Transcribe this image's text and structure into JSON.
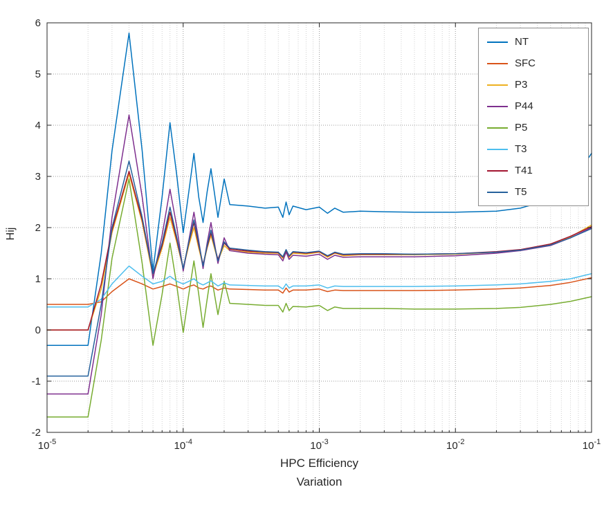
{
  "chart_data": {
    "type": "line",
    "x_scale": "log",
    "title": "",
    "xlabel_line1": "HPC Efficiency",
    "xlabel_line2": "Variation",
    "ylabel": "Hij",
    "xlim_exp": [
      -5,
      -1
    ],
    "ylim": [
      -2,
      6
    ],
    "y_ticks": [
      -2,
      -1,
      0,
      1,
      2,
      3,
      4,
      5,
      6
    ],
    "x_major_exp": [
      -5,
      -4,
      -3,
      -2,
      -1
    ],
    "grid": true,
    "minor_grid": true,
    "legend_position": "northeast",
    "axis_color": "#262626",
    "grid_color": "#9a9a9a",
    "minor_grid_color": "#cfcfcf",
    "legend_border_color": "#8c8c8c",
    "legend_background": "#ffffff",
    "x": [
      1e-05,
      2e-05,
      2.5e-05,
      3e-05,
      4e-05,
      5e-05,
      6e-05,
      7e-05,
      8e-05,
      9e-05,
      0.0001,
      0.00011,
      0.00012,
      0.00013,
      0.00014,
      0.00015,
      0.00016,
      0.00018,
      0.0002,
      0.00022,
      0.0003,
      0.0004,
      0.0005,
      0.00054,
      0.00057,
      0.0006,
      0.00064,
      0.0008,
      0.001,
      0.00115,
      0.0013,
      0.0015,
      0.002,
      0.003,
      0.005,
      0.01,
      0.02,
      0.03,
      0.05,
      0.07,
      0.1
    ],
    "series": [
      {
        "name": "NT",
        "color": "#0072BD",
        "values": [
          -0.3,
          -0.3,
          1.5,
          3.5,
          5.8,
          3.5,
          1.15,
          2.6,
          4.05,
          3.0,
          1.9,
          2.7,
          3.45,
          2.6,
          2.1,
          2.7,
          3.15,
          2.2,
          2.95,
          2.45,
          2.42,
          2.38,
          2.4,
          2.2,
          2.5,
          2.25,
          2.42,
          2.35,
          2.4,
          2.28,
          2.38,
          2.3,
          2.32,
          2.31,
          2.3,
          2.3,
          2.32,
          2.38,
          2.55,
          2.85,
          3.45
        ]
      },
      {
        "name": "SFC",
        "color": "#D95319",
        "values": [
          0.5,
          0.5,
          0.55,
          0.75,
          1.0,
          0.9,
          0.8,
          0.85,
          0.9,
          0.85,
          0.8,
          0.85,
          0.88,
          0.82,
          0.8,
          0.84,
          0.86,
          0.78,
          0.82,
          0.8,
          0.79,
          0.78,
          0.78,
          0.72,
          0.82,
          0.74,
          0.78,
          0.78,
          0.8,
          0.75,
          0.78,
          0.77,
          0.77,
          0.77,
          0.77,
          0.78,
          0.8,
          0.82,
          0.87,
          0.93,
          1.02
        ]
      },
      {
        "name": "P3",
        "color": "#EDB120",
        "values": [
          0.0,
          0.0,
          0.8,
          1.9,
          3.05,
          2.1,
          1.05,
          1.6,
          2.2,
          1.7,
          1.2,
          1.65,
          2.0,
          1.6,
          1.25,
          1.6,
          1.85,
          1.35,
          1.65,
          1.55,
          1.52,
          1.5,
          1.5,
          1.4,
          1.55,
          1.42,
          1.5,
          1.48,
          1.52,
          1.42,
          1.5,
          1.45,
          1.47,
          1.47,
          1.47,
          1.48,
          1.52,
          1.56,
          1.68,
          1.82,
          2.05
        ]
      },
      {
        "name": "P44",
        "color": "#7E2F8E",
        "values": [
          -1.25,
          -1.25,
          0.3,
          2.2,
          4.2,
          2.6,
          1.0,
          1.85,
          2.75,
          2.0,
          1.15,
          1.75,
          2.3,
          1.75,
          1.2,
          1.7,
          2.1,
          1.3,
          1.8,
          1.55,
          1.5,
          1.48,
          1.47,
          1.35,
          1.52,
          1.38,
          1.46,
          1.44,
          1.48,
          1.38,
          1.46,
          1.42,
          1.43,
          1.43,
          1.43,
          1.45,
          1.5,
          1.55,
          1.65,
          1.8,
          2.0
        ]
      },
      {
        "name": "P5",
        "color": "#77AC30",
        "values": [
          -1.7,
          -1.7,
          -0.2,
          1.4,
          2.95,
          1.3,
          -0.3,
          0.7,
          1.7,
          0.85,
          -0.05,
          0.7,
          1.35,
          0.7,
          0.05,
          0.6,
          1.1,
          0.3,
          0.95,
          0.52,
          0.5,
          0.48,
          0.48,
          0.35,
          0.52,
          0.38,
          0.46,
          0.45,
          0.48,
          0.38,
          0.45,
          0.42,
          0.42,
          0.42,
          0.41,
          0.41,
          0.42,
          0.44,
          0.5,
          0.56,
          0.65
        ]
      },
      {
        "name": "T3",
        "color": "#4DBEEE",
        "values": [
          0.45,
          0.45,
          0.6,
          0.9,
          1.25,
          1.05,
          0.9,
          0.95,
          1.05,
          0.95,
          0.9,
          0.95,
          1.0,
          0.92,
          0.88,
          0.92,
          0.96,
          0.86,
          0.92,
          0.88,
          0.87,
          0.86,
          0.86,
          0.8,
          0.9,
          0.82,
          0.86,
          0.86,
          0.88,
          0.82,
          0.86,
          0.85,
          0.85,
          0.85,
          0.85,
          0.86,
          0.88,
          0.9,
          0.95,
          1.0,
          1.1
        ]
      },
      {
        "name": "T41",
        "color": "#A2142F",
        "values": [
          0.0,
          0.0,
          0.9,
          1.95,
          3.1,
          2.15,
          1.1,
          1.65,
          2.3,
          1.75,
          1.2,
          1.7,
          2.1,
          1.65,
          1.28,
          1.62,
          1.9,
          1.38,
          1.7,
          1.58,
          1.54,
          1.52,
          1.51,
          1.42,
          1.56,
          1.44,
          1.52,
          1.5,
          1.53,
          1.44,
          1.51,
          1.47,
          1.48,
          1.48,
          1.48,
          1.49,
          1.53,
          1.57,
          1.68,
          1.83,
          2.02
        ]
      },
      {
        "name": "T5",
        "color": "#26619C",
        "values": [
          -0.9,
          -0.9,
          0.5,
          2.0,
          3.3,
          2.2,
          1.1,
          1.7,
          2.4,
          1.8,
          1.2,
          1.72,
          2.15,
          1.7,
          1.25,
          1.65,
          1.95,
          1.35,
          1.72,
          1.6,
          1.56,
          1.53,
          1.52,
          1.43,
          1.57,
          1.45,
          1.53,
          1.51,
          1.54,
          1.45,
          1.52,
          1.48,
          1.49,
          1.49,
          1.48,
          1.49,
          1.52,
          1.56,
          1.66,
          1.8,
          1.98
        ]
      }
    ]
  }
}
